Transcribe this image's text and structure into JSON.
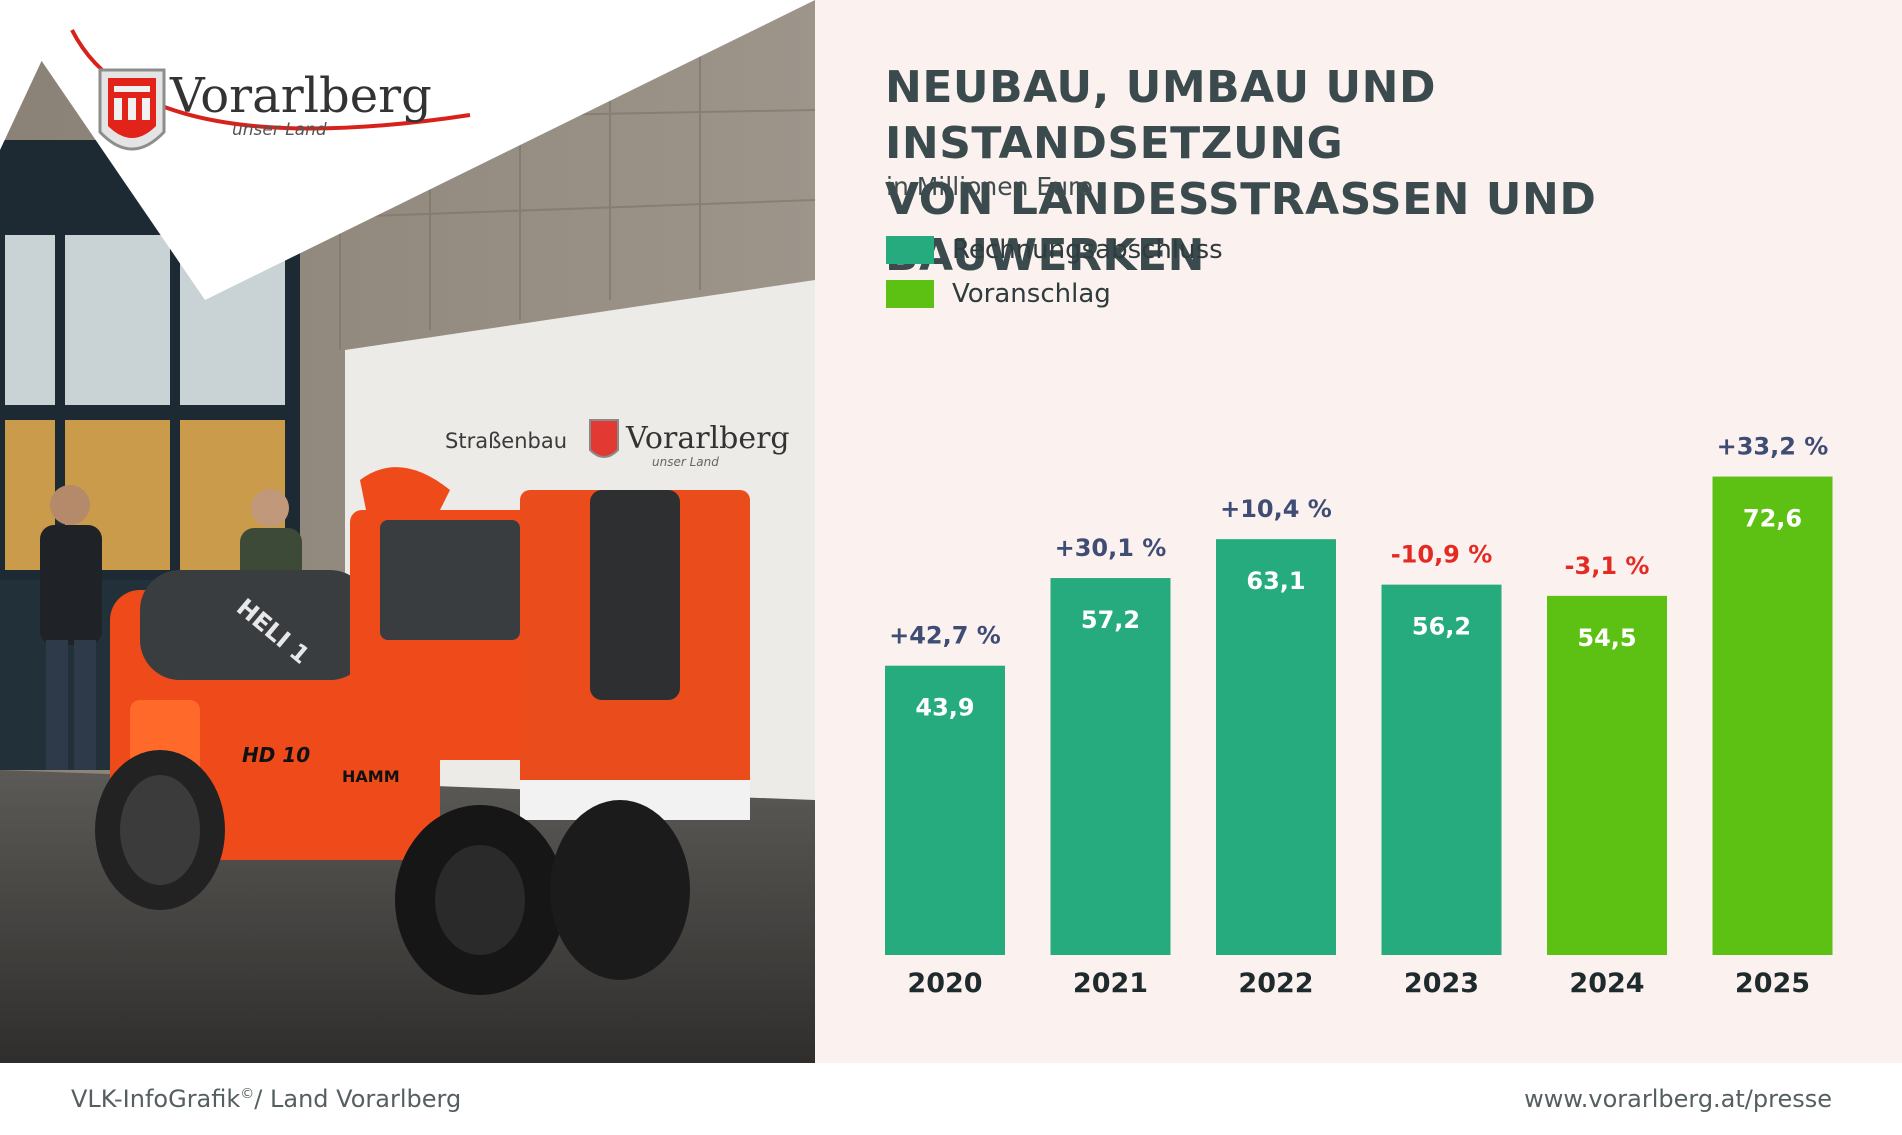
{
  "brand": {
    "name": "Vorarlberg",
    "tagline": "unser Land"
  },
  "photo": {
    "sign_text": "Straßenbau",
    "sign_brand": "Vorarlberg",
    "sign_tagline": "unser Land",
    "machine_label": "HD 10",
    "machine_maker": "HAMM",
    "machine_model": "HELI 1"
  },
  "colors": {
    "actual": "#25ab7d",
    "budget": "#5cc113",
    "growth": "#3f4d75",
    "decline": "#e32b24",
    "background": "#fbf1ef"
  },
  "chart_data": {
    "type": "bar",
    "title": "NEUBAU, UMBAU UND INSTANDSETZUNG\nVON LANDESSTRASSEN UND BAUWERKEN",
    "subtitle": "in Millionen Euro",
    "categories": [
      "2020",
      "2021",
      "2022",
      "2023",
      "2024",
      "2025"
    ],
    "values": [
      43.9,
      57.2,
      63.1,
      56.2,
      54.5,
      72.6
    ],
    "value_labels": [
      "43,9",
      "57,2",
      "63,1",
      "56,2",
      "54,5",
      "72,6"
    ],
    "change_labels": [
      "+42,7 %",
      "+30,1 %",
      "+10,4 %",
      "-10,9 %",
      "-3,1 %",
      "+33,2 %"
    ],
    "series_type": [
      "Rechnungsabschluss",
      "Rechnungsabschluss",
      "Rechnungsabschluss",
      "Rechnungsabschluss",
      "Voranschlag",
      "Voranschlag"
    ],
    "legend": [
      {
        "name": "Rechnungsabschluss",
        "color": "#25ab7d"
      },
      {
        "name": "Voranschlag",
        "color": "#5cc113"
      }
    ],
    "ylim": [
      0,
      100
    ],
    "grid": false,
    "legend_position": "top-left"
  },
  "footer": {
    "credit": "VLK-InfoGrafik",
    "credit_mark": "©",
    "credit_suffix": "/ Land Vorarlberg",
    "url": "www.vorarlberg.at/presse"
  }
}
